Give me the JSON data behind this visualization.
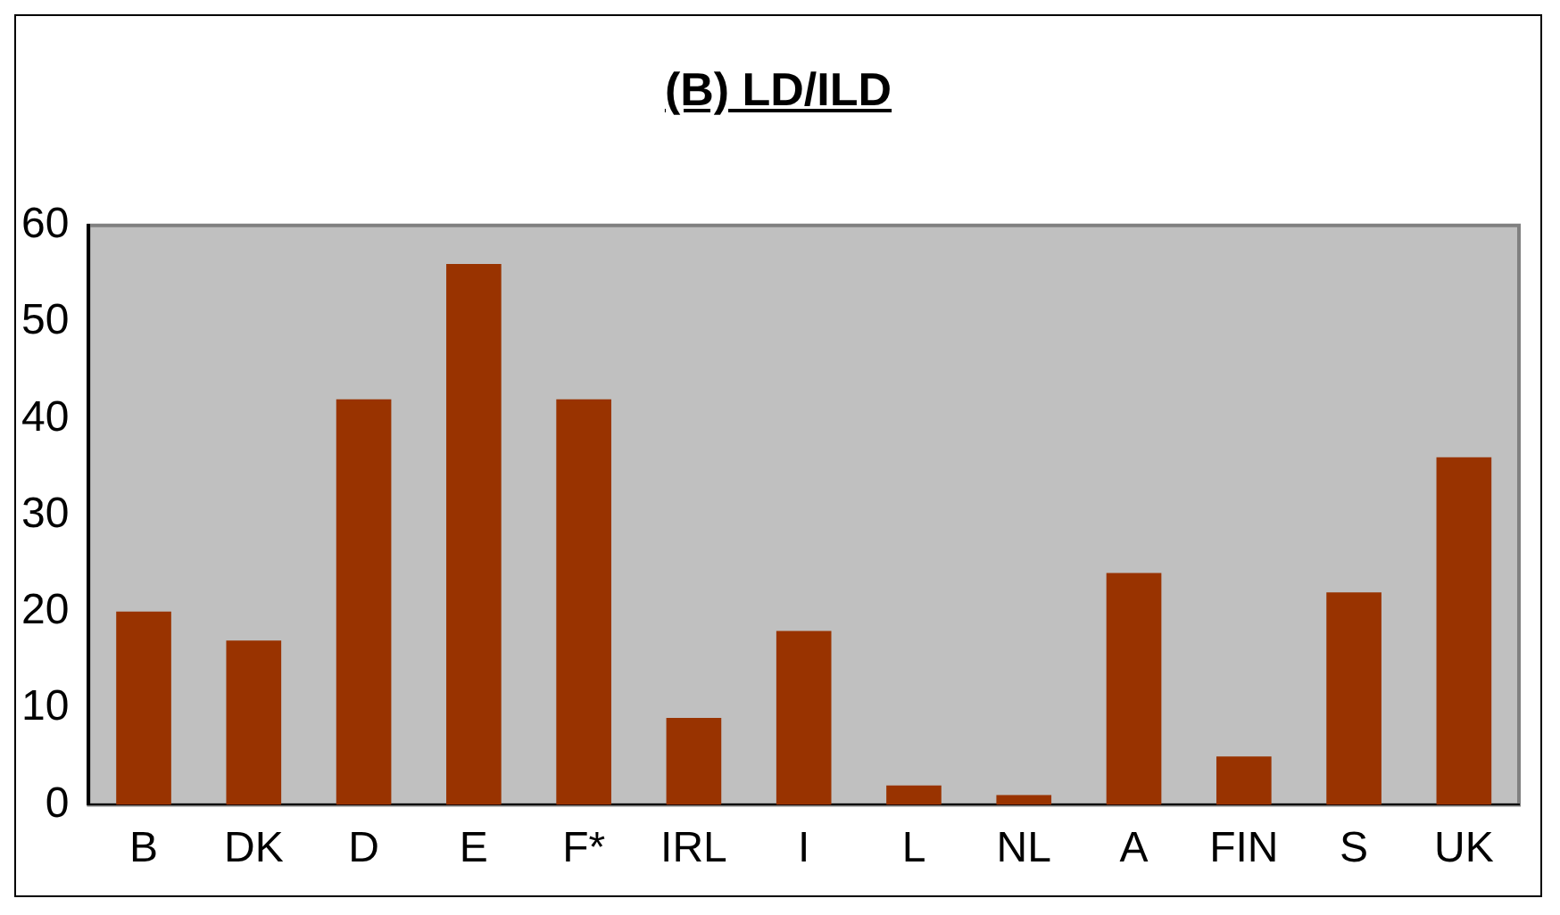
{
  "chart_data": {
    "type": "bar",
    "title": "(B) LD/ILD",
    "categories": [
      "B",
      "DK",
      "D",
      "E",
      "F*",
      "IRL",
      "I",
      "L",
      "NL",
      "A",
      "FIN",
      "S",
      "UK"
    ],
    "values": [
      20,
      17,
      42,
      56,
      42,
      9,
      18,
      2,
      1,
      24,
      5,
      22,
      36
    ],
    "color": "#993300",
    "ylim": [
      0,
      60
    ],
    "yticks": [
      0,
      10,
      20,
      30,
      40,
      50,
      60
    ],
    "grid": false,
    "legend": false
  }
}
